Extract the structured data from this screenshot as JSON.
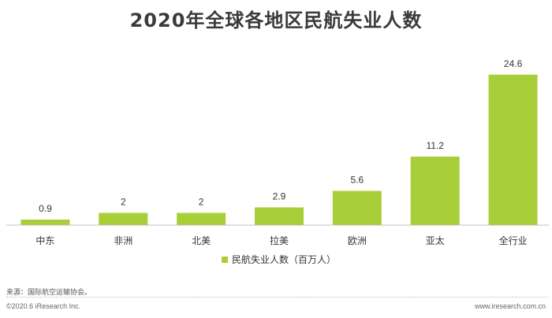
{
  "chart_data": {
    "type": "bar",
    "title": "2020年全球各地区民航失业人数",
    "categories": [
      "中东",
      "非洲",
      "北美",
      "拉美",
      "欧洲",
      "亚太",
      "全行业"
    ],
    "series": [
      {
        "name": "民航失业人数（百万人）",
        "values": [
          0.9,
          2,
          2,
          2.9,
          5.6,
          11.2,
          24.6
        ]
      }
    ],
    "value_labels": [
      "0.9",
      "2",
      "2",
      "2.9",
      "5.6",
      "11.2",
      "24.6"
    ],
    "ylim": [
      0,
      26
    ],
    "grid": false,
    "legend_position": "bottom-center",
    "color": "#a9cf38"
  },
  "footer": {
    "source": "来源：国际航空运输协会。",
    "copyright": "©2020.6 iResearch Inc.",
    "website": "www.iresearch.com.cn"
  }
}
